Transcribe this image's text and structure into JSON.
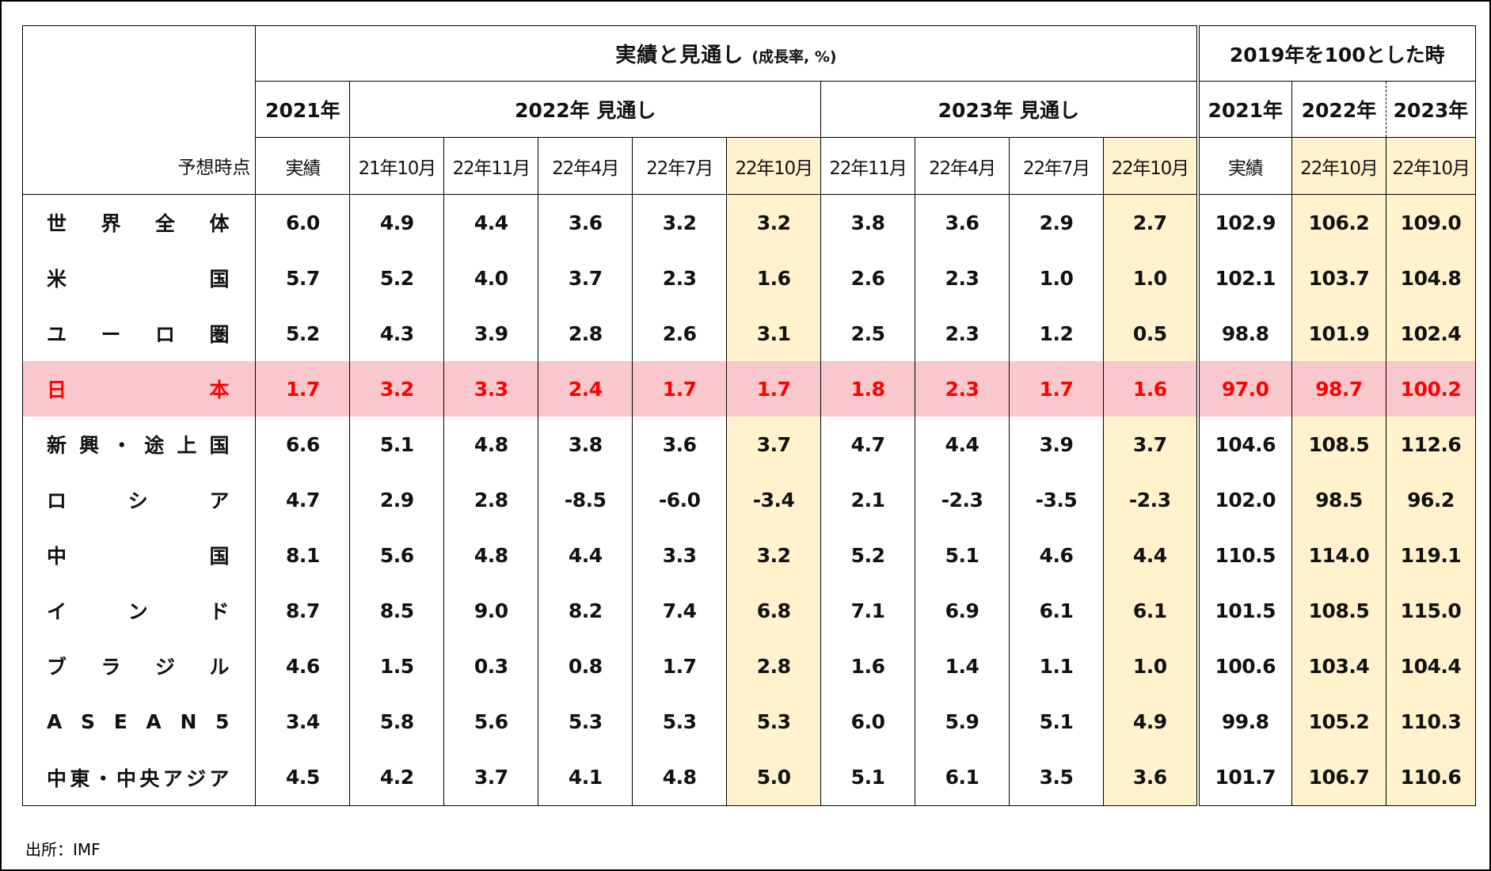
{
  "header": {
    "main_title": "実績と見通し",
    "main_title_unit": "(成長率, %)",
    "index_title": "2019年を100とした時",
    "year_2021": "2021年",
    "forecast_2022": "2022年 見通し",
    "forecast_2023": "2023年 見通し",
    "idx_2021": "2021年",
    "idx_2022": "2022年",
    "idx_2023": "2023年",
    "forecast_point_label": "予想時点",
    "sub_columns": [
      "実績",
      "21年10月",
      "22年11月",
      "22年4月",
      "22年7月",
      "22年10月",
      "22年11月",
      "22年4月",
      "22年7月",
      "22年10月",
      "実績",
      "22年10月",
      "22年10月"
    ]
  },
  "rows": [
    {
      "country": [
        "世",
        "界",
        "全",
        "体"
      ],
      "values": [
        "6.0",
        "4.9",
        "4.4",
        "3.6",
        "3.2",
        "3.2",
        "3.8",
        "3.6",
        "2.9",
        "2.7",
        "102.9",
        "106.2",
        "109.0"
      ]
    },
    {
      "country": [
        "米",
        "国"
      ],
      "values": [
        "5.7",
        "5.2",
        "4.0",
        "3.7",
        "2.3",
        "1.6",
        "2.6",
        "2.3",
        "1.0",
        "1.0",
        "102.1",
        "103.7",
        "104.8"
      ]
    },
    {
      "country": [
        "ユ",
        "ー",
        "ロ",
        "圏"
      ],
      "values": [
        "5.2",
        "4.3",
        "3.9",
        "2.8",
        "2.6",
        "3.1",
        "2.5",
        "2.3",
        "1.2",
        "0.5",
        "98.8",
        "101.9",
        "102.4"
      ]
    },
    {
      "country": [
        "日",
        "本"
      ],
      "highlight": true,
      "values": [
        "1.7",
        "3.2",
        "3.3",
        "2.4",
        "1.7",
        "1.7",
        "1.8",
        "2.3",
        "1.7",
        "1.6",
        "97.0",
        "98.7",
        "100.2"
      ]
    },
    {
      "country": [
        "新",
        "興",
        "・",
        "途",
        "上",
        "国"
      ],
      "values": [
        "6.6",
        "5.1",
        "4.8",
        "3.8",
        "3.6",
        "3.7",
        "4.7",
        "4.4",
        "3.9",
        "3.7",
        "104.6",
        "108.5",
        "112.6"
      ]
    },
    {
      "country": [
        "ロ",
        "シ",
        "ア"
      ],
      "values": [
        "4.7",
        "2.9",
        "2.8",
        "-8.5",
        "-6.0",
        "-3.4",
        "2.1",
        "-2.3",
        "-3.5",
        "-2.3",
        "102.0",
        "98.5",
        "96.2"
      ]
    },
    {
      "country": [
        "中",
        "国"
      ],
      "values": [
        "8.1",
        "5.6",
        "4.8",
        "4.4",
        "3.3",
        "3.2",
        "5.2",
        "5.1",
        "4.6",
        "4.4",
        "110.5",
        "114.0",
        "119.1"
      ]
    },
    {
      "country": [
        "イ",
        "ン",
        "ド"
      ],
      "values": [
        "8.7",
        "8.5",
        "9.0",
        "8.2",
        "7.4",
        "6.8",
        "7.1",
        "6.9",
        "6.1",
        "6.1",
        "101.5",
        "108.5",
        "115.0"
      ]
    },
    {
      "country": [
        "ブ",
        "ラ",
        "ジ",
        "ル"
      ],
      "values": [
        "4.6",
        "1.5",
        "0.3",
        "0.8",
        "1.7",
        "2.8",
        "1.6",
        "1.4",
        "1.1",
        "1.0",
        "100.6",
        "103.4",
        "104.4"
      ]
    },
    {
      "country": [
        "A",
        "S",
        "E",
        "A",
        "N",
        "5"
      ],
      "values": [
        "3.4",
        "5.8",
        "5.6",
        "5.3",
        "5.3",
        "5.3",
        "6.0",
        "5.9",
        "5.1",
        "4.9",
        "99.8",
        "105.2",
        "110.3"
      ]
    },
    {
      "country": [
        "中",
        "東",
        "・",
        "中",
        "央",
        "ア",
        "ジ",
        "ア"
      ],
      "values": [
        "4.5",
        "4.2",
        "3.7",
        "4.1",
        "4.8",
        "5.0",
        "5.1",
        "6.1",
        "3.5",
        "3.6",
        "101.7",
        "106.7",
        "110.6"
      ]
    }
  ],
  "footer": {
    "source": "出所：IMF"
  },
  "colors": {
    "highlight_column": "#fff2cc",
    "japan_row_bg": "#f9c8cc",
    "japan_text": "#ff0000"
  }
}
